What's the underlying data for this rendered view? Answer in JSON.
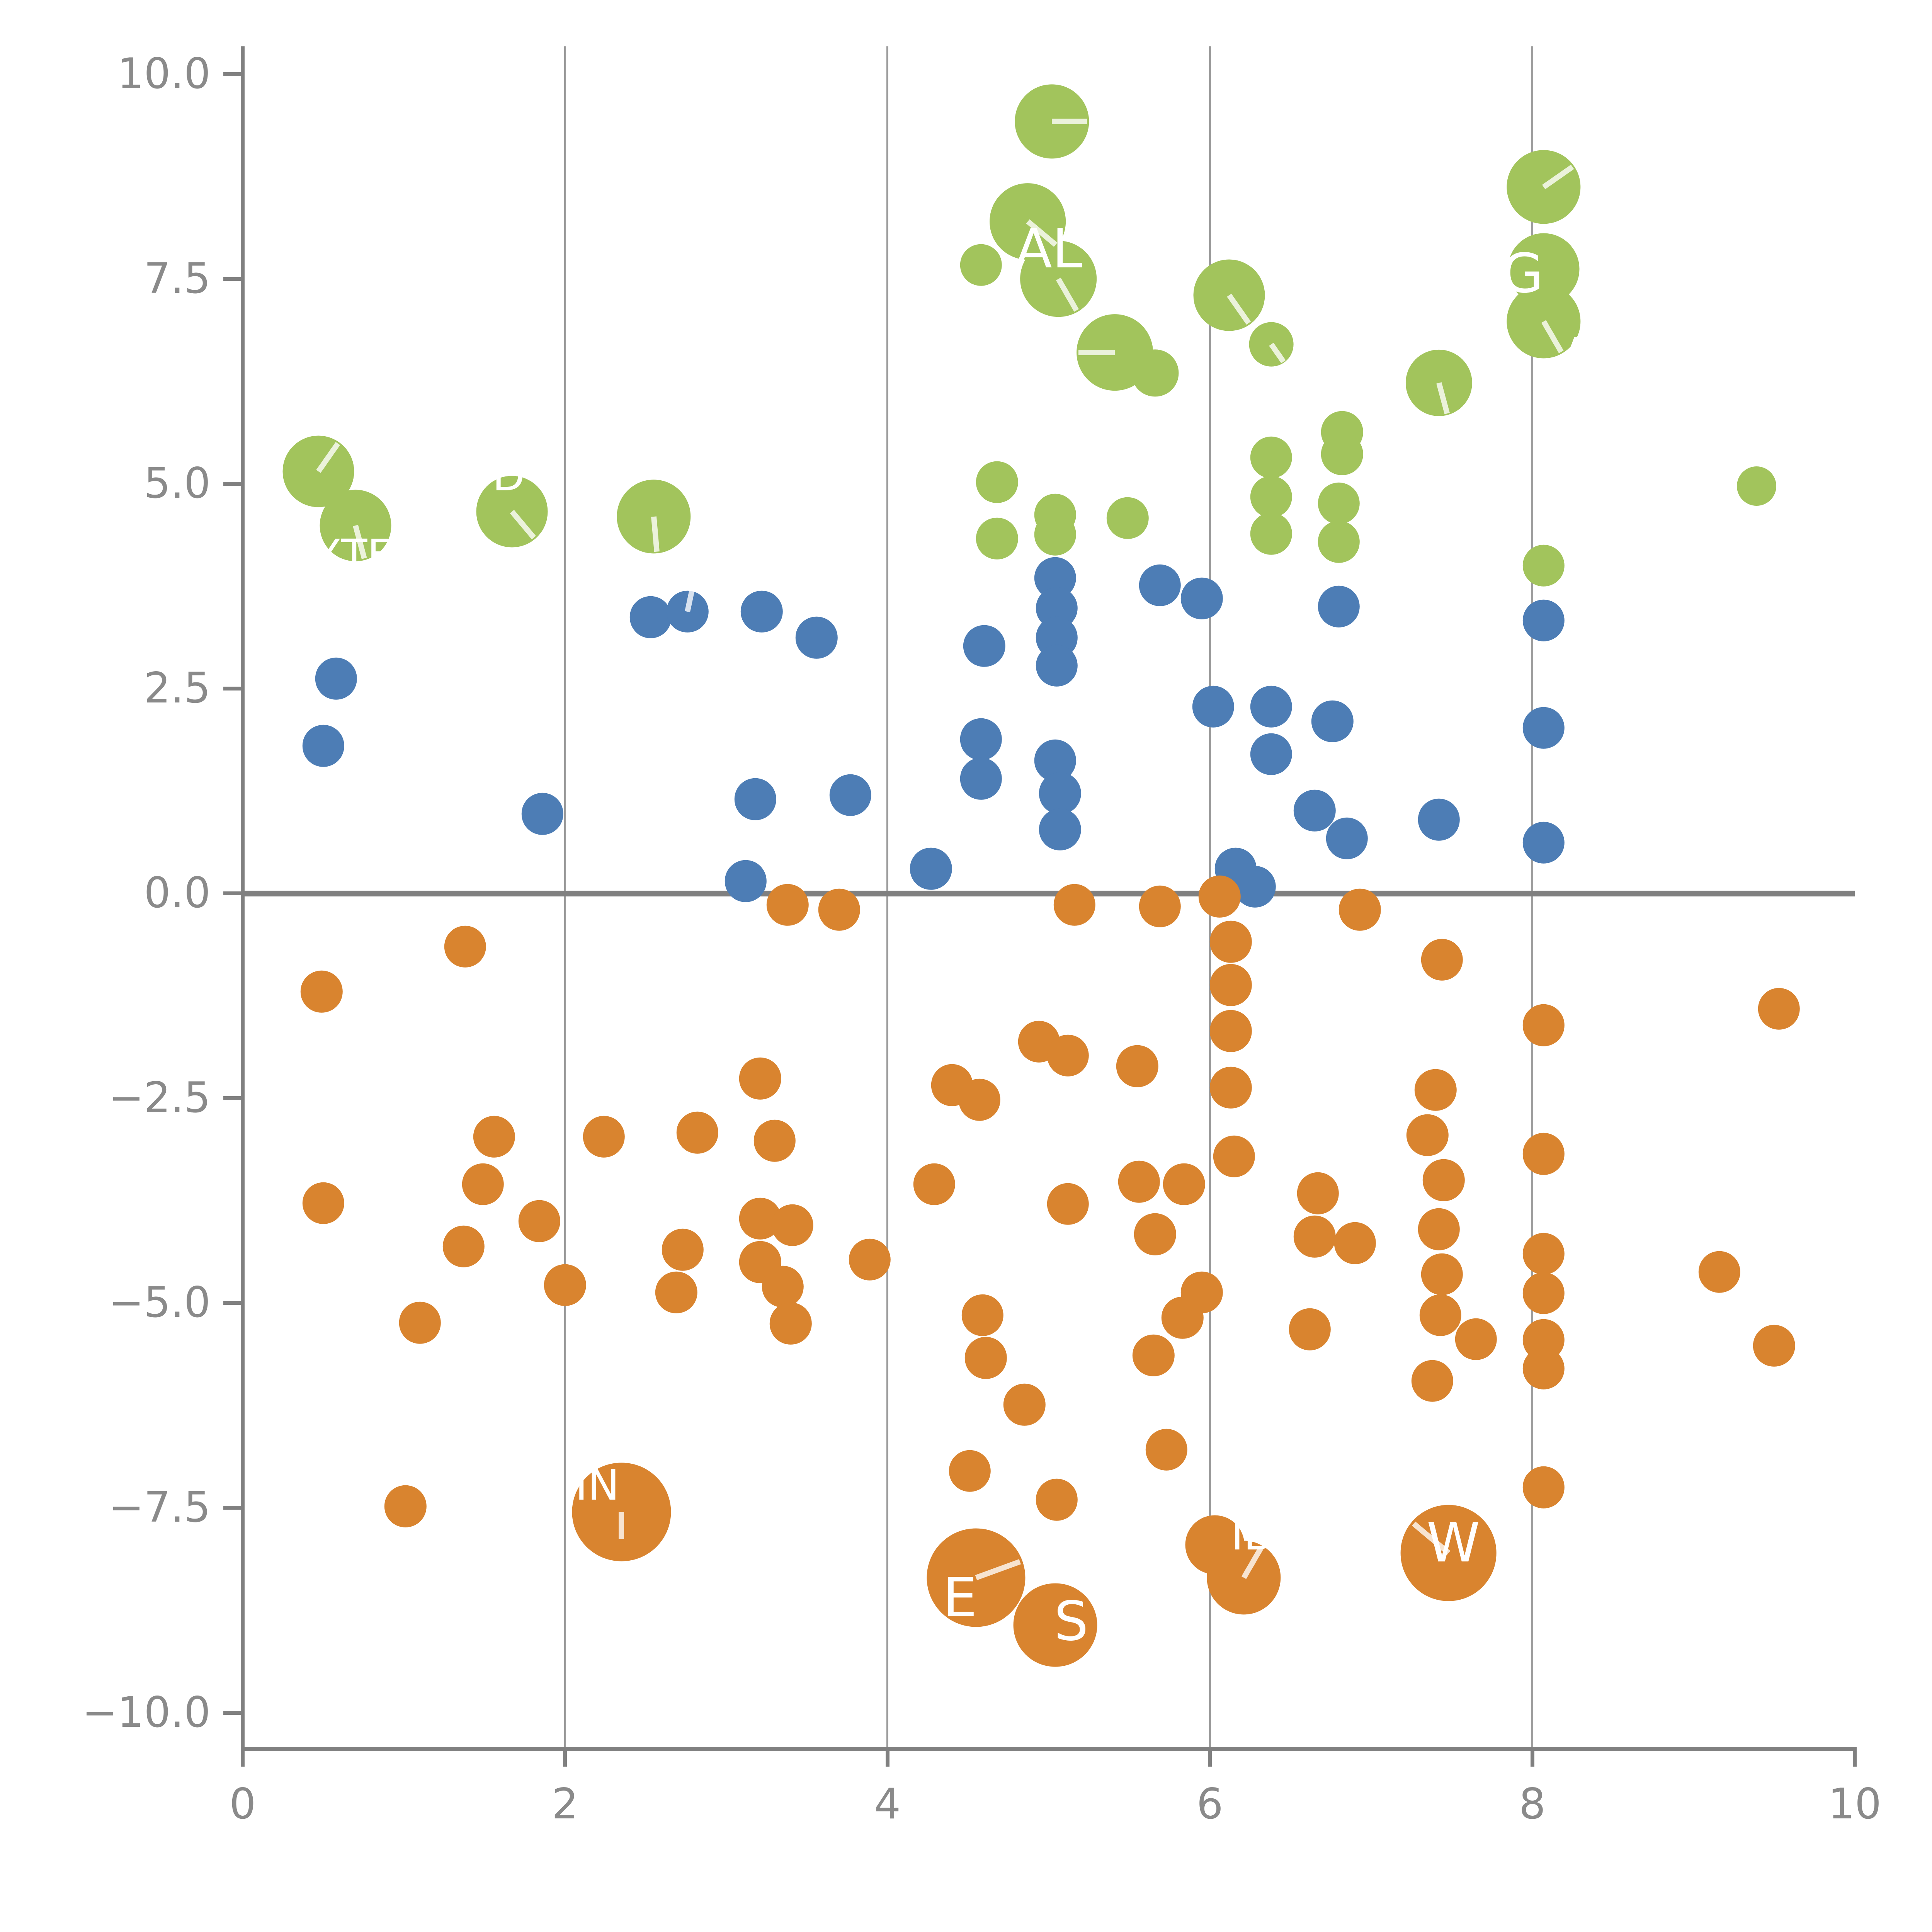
{
  "chart_data": {
    "type": "scatter",
    "title": "",
    "xlabel": "",
    "ylabel": "",
    "xlim": [
      0,
      10
    ],
    "ylim": [
      -10,
      10
    ],
    "grid_x_values": [
      2,
      4,
      6,
      8
    ],
    "zero_line_y": 0,
    "x_ticks": [
      {
        "v": 0,
        "t": "0"
      },
      {
        "v": 2,
        "t": "2"
      },
      {
        "v": 4,
        "t": "4"
      },
      {
        "v": 6,
        "t": "6"
      },
      {
        "v": 8,
        "t": "8"
      },
      {
        "v": 10,
        "t": "10"
      }
    ],
    "y_ticks": [
      {
        "v": 10,
        "t": "10.0"
      },
      {
        "v": 7.5,
        "t": "7.5"
      },
      {
        "v": 5,
        "t": "5.0"
      },
      {
        "v": 2.5,
        "t": "2.5"
      },
      {
        "v": 0,
        "t": "0.0"
      },
      {
        "v": -2.5,
        "t": "−2.5"
      },
      {
        "v": -5,
        "t": "−5.0"
      },
      {
        "v": -7.5,
        "t": "−7.5"
      },
      {
        "v": -10,
        "t": "−10.0"
      }
    ],
    "series": [
      {
        "name": "green",
        "color": "#a2c45c",
        "points": [
          [
            0.47,
            5.15,
            29,
            {
              "line": 55
            }
          ],
          [
            0.7,
            4.49,
            29,
            {
              "line": -75,
              "label": "XTF",
              "lx": -0.02,
              "ly": -0.36,
              "ls": "m"
            }
          ],
          [
            1.67,
            4.66,
            29,
            {
              "line": -50,
              "label": "D",
              "lx": -0.02,
              "ly": 0.44,
              "ls": "m"
            }
          ],
          [
            2.55,
            4.6,
            30,
            {
              "line": -85
            }
          ],
          [
            5.02,
            9.42,
            30,
            {
              "line": 0
            }
          ],
          [
            4.87,
            8.2,
            31,
            {
              "line": -40
            }
          ],
          [
            5.06,
            7.5,
            31,
            {
              "line": -60,
              "label": "AL",
              "lx": -0.06,
              "ly": 0.36,
              "ls": "l"
            }
          ],
          [
            5.41,
            6.6,
            31,
            {
              "line": 180
            }
          ],
          [
            5.66,
            6.35,
            19
          ],
          [
            6.12,
            7.3,
            29,
            {
              "line": -55
            }
          ],
          [
            6.38,
            6.7,
            18,
            {
              "line": -55
            }
          ],
          [
            7.42,
            6.23,
            27,
            {
              "line": -75
            }
          ],
          [
            8.07,
            8.62,
            30,
            {
              "line": 35
            }
          ],
          [
            8.07,
            7.62,
            29,
            {
              "label": "G",
              "lx": -0.13,
              "ly": -0.06,
              "ls": "l"
            }
          ],
          [
            8.07,
            6.98,
            30,
            {
              "line": -60,
              "label": "A",
              "lx": 0.2,
              "ly": -0.33,
              "ls": "s"
            }
          ],
          [
            4.58,
            7.67,
            17
          ],
          [
            4.68,
            5.02,
            17
          ],
          [
            4.68,
            4.33,
            17
          ],
          [
            5.04,
            4.62,
            17
          ],
          [
            5.04,
            4.38,
            17
          ],
          [
            5.49,
            4.58,
            17
          ],
          [
            6.38,
            5.32,
            17
          ],
          [
            6.38,
            4.84,
            17
          ],
          [
            6.38,
            4.39,
            17
          ],
          [
            6.82,
            5.63,
            17
          ],
          [
            6.82,
            5.36,
            17
          ],
          [
            6.8,
            4.76,
            17
          ],
          [
            6.8,
            4.29,
            17
          ],
          [
            8.07,
            4.0,
            17
          ],
          [
            9.39,
            4.97,
            16
          ]
        ]
      },
      {
        "name": "blue",
        "color": "#4d7db5",
        "points": [
          [
            0.58,
            2.62,
            17
          ],
          [
            0.5,
            1.8,
            17
          ],
          [
            1.86,
            0.97,
            17
          ],
          [
            2.53,
            3.37,
            17
          ],
          [
            2.76,
            3.44,
            17,
            {
              "line": 78,
              "lineLen": 1.5
            }
          ],
          [
            3.22,
            3.44,
            17
          ],
          [
            3.56,
            3.12,
            17
          ],
          [
            3.18,
            1.15,
            17
          ],
          [
            3.77,
            1.2,
            17
          ],
          [
            3.12,
            0.15,
            17
          ],
          [
            4.27,
            0.3,
            17
          ],
          [
            4.6,
            3.02,
            17
          ],
          [
            4.58,
            1.88,
            17
          ],
          [
            4.58,
            1.4,
            17
          ],
          [
            5.04,
            3.85,
            17
          ],
          [
            5.05,
            3.48,
            17
          ],
          [
            5.05,
            3.12,
            17
          ],
          [
            5.05,
            2.78,
            17
          ],
          [
            5.69,
            3.76,
            17
          ],
          [
            5.95,
            3.6,
            17
          ],
          [
            6.8,
            3.5,
            17
          ],
          [
            6.02,
            2.28,
            17
          ],
          [
            6.38,
            2.28,
            17
          ],
          [
            6.38,
            1.7,
            17
          ],
          [
            6.76,
            2.1,
            17
          ],
          [
            5.04,
            1.62,
            17
          ],
          [
            5.07,
            1.22,
            17
          ],
          [
            5.07,
            0.78,
            17
          ],
          [
            6.65,
            1.01,
            17
          ],
          [
            6.85,
            0.67,
            17
          ],
          [
            6.16,
            0.3,
            17
          ],
          [
            6.28,
            0.08,
            17
          ],
          [
            7.42,
            0.9,
            17
          ],
          [
            8.07,
            3.33,
            17
          ],
          [
            8.07,
            2.02,
            17
          ],
          [
            8.07,
            0.62,
            17
          ]
        ]
      },
      {
        "name": "orange",
        "color": "#d9842f",
        "points": [
          [
            1.38,
            -0.65,
            17
          ],
          [
            0.49,
            -1.2,
            17
          ],
          [
            0.5,
            -3.78,
            17
          ],
          [
            1.56,
            -2.97,
            17
          ],
          [
            1.49,
            -3.55,
            17
          ],
          [
            1.37,
            -4.31,
            17
          ],
          [
            1.84,
            -4.0,
            17
          ],
          [
            2.0,
            -4.78,
            17
          ],
          [
            1.1,
            -5.24,
            17
          ],
          [
            1.01,
            -7.48,
            17
          ],
          [
            3.38,
            -0.14,
            17
          ],
          [
            3.7,
            -0.2,
            17
          ],
          [
            3.21,
            -2.26,
            17
          ],
          [
            2.24,
            -2.97,
            17
          ],
          [
            2.82,
            -2.92,
            17
          ],
          [
            3.3,
            -3.02,
            17
          ],
          [
            2.73,
            -4.35,
            17
          ],
          [
            2.69,
            -4.87,
            17
          ],
          [
            3.21,
            -3.97,
            17
          ],
          [
            3.41,
            -4.05,
            17
          ],
          [
            3.21,
            -4.5,
            17
          ],
          [
            3.35,
            -4.8,
            17
          ],
          [
            3.4,
            -5.25,
            17
          ],
          [
            3.89,
            -4.47,
            17
          ],
          [
            4.4,
            -2.34,
            17
          ],
          [
            4.57,
            -2.52,
            17
          ],
          [
            4.29,
            -3.55,
            17
          ],
          [
            4.59,
            -5.15,
            17
          ],
          [
            4.61,
            -5.67,
            17
          ],
          [
            4.51,
            -7.05,
            17
          ],
          [
            4.85,
            -6.24,
            17
          ],
          [
            5.65,
            -5.64,
            17
          ],
          [
            5.83,
            -5.18,
            17
          ],
          [
            5.73,
            -6.79,
            17
          ],
          [
            5.05,
            -7.4,
            17
          ],
          [
            4.94,
            -1.81,
            17
          ],
          [
            5.12,
            -1.98,
            17
          ],
          [
            5.55,
            -2.11,
            17
          ],
          [
            5.16,
            -0.14,
            17
          ],
          [
            5.69,
            -0.16,
            17
          ],
          [
            6.06,
            -0.04,
            17
          ],
          [
            6.13,
            -0.59,
            17
          ],
          [
            6.13,
            -1.12,
            17
          ],
          [
            6.13,
            -1.68,
            17
          ],
          [
            6.13,
            -2.37,
            17
          ],
          [
            6.15,
            -3.21,
            17
          ],
          [
            5.56,
            -3.52,
            17
          ],
          [
            5.84,
            -3.55,
            17
          ],
          [
            5.12,
            -3.79,
            17
          ],
          [
            5.66,
            -4.16,
            17
          ],
          [
            6.67,
            -3.66,
            17
          ],
          [
            6.65,
            -4.19,
            17
          ],
          [
            6.9,
            -4.27,
            17
          ],
          [
            6.93,
            -0.2,
            17
          ],
          [
            7.44,
            -0.81,
            17
          ],
          [
            7.4,
            -2.4,
            17
          ],
          [
            7.35,
            -2.95,
            17
          ],
          [
            7.45,
            -3.5,
            17
          ],
          [
            7.42,
            -4.1,
            17
          ],
          [
            7.44,
            -4.65,
            17
          ],
          [
            7.43,
            -5.15,
            17
          ],
          [
            7.65,
            -5.44,
            17
          ],
          [
            7.38,
            -5.95,
            17
          ],
          [
            8.07,
            -1.61,
            17
          ],
          [
            8.07,
            -3.18,
            17
          ],
          [
            8.07,
            -4.4,
            17
          ],
          [
            8.07,
            -4.88,
            17
          ],
          [
            8.07,
            -5.45,
            17
          ],
          [
            8.07,
            -5.8,
            17
          ],
          [
            8.07,
            -7.25,
            17
          ],
          [
            9.53,
            -1.41,
            17
          ],
          [
            9.16,
            -4.62,
            17
          ],
          [
            9.5,
            -5.52,
            17
          ],
          [
            5.95,
            -4.87,
            17
          ],
          [
            6.62,
            -5.32,
            17
          ],
          [
            2.35,
            -7.55,
            40,
            {
              "label": "IN",
              "lx": -0.15,
              "ly": 0.33,
              "ls": "m",
              "line": -90,
              "lineLen": 0.55
            }
          ],
          [
            4.55,
            -8.35,
            40,
            {
              "label": "E",
              "lx": -0.1,
              "ly": -0.25,
              "ls": "l",
              "line": 20
            }
          ],
          [
            6.03,
            -7.95,
            24
          ],
          [
            6.21,
            -8.35,
            30,
            {
              "label": "IB",
              "lx": 0.05,
              "ly": 0.52,
              "ls": "m",
              "line": 60
            }
          ],
          [
            7.48,
            -8.05,
            39,
            {
              "label": "W",
              "lx": 0.03,
              "ly": 0.12,
              "ls": "l",
              "line": 140
            }
          ],
          [
            5.04,
            -8.93,
            34,
            {
              "label": "S",
              "lx": 0.1,
              "ly": 0.04,
              "ls": "l"
            }
          ]
        ]
      }
    ]
  },
  "style": {
    "background": "#ffffff",
    "spine_color": "#808080",
    "grid_color": "#8a8a8a",
    "tick_label_color": "#8a8a8a",
    "bubble_annotation_color": "#ffffff"
  }
}
